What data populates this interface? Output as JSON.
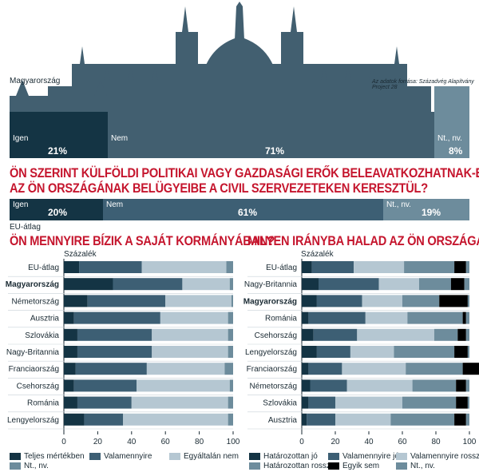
{
  "colors": {
    "dark": "#143444",
    "mid": "#3d5f74",
    "light": "#b5c7d2",
    "gray": "#6d8c9c",
    "black": "#000000",
    "red": "#c5162e",
    "parliament": "#425f70"
  },
  "top": {
    "country": "Magyarország",
    "source": "Az adatok forrása: Századvég Alapítvány Project 28",
    "segments": [
      {
        "label": "Igen",
        "value": "21%",
        "color": "dark"
      },
      {
        "label": "Nem",
        "value": "71%",
        "color": "parliament"
      },
      {
        "label": "Nt., nv.",
        "value": "8%",
        "color": "gray"
      }
    ]
  },
  "question_top": {
    "title_line1": "ÖN SZERINT KÜLFÖLDI POLITIKAI VAGY GAZDASÁGI ERŐK BELEAVATKOZHATNAK-E",
    "title_line2": "AZ ÖN ORSZÁGÁNAK BELÜGYEIBE A CIVIL SZERVEZETEKEN KERESZTÜL?",
    "eu_label": "EU-átlag",
    "segments": [
      {
        "label": "Igen",
        "value": "20%",
        "color": "dark"
      },
      {
        "label": "Nem",
        "value": "61%",
        "color": "mid"
      },
      {
        "label": "Nt., nv.",
        "value": "19%",
        "color": "gray"
      }
    ]
  },
  "chart_data": [
    {
      "type": "bar",
      "title": "ÖN MENNYIRE BÍZIK A SAJÁT KORMÁNYÁBAN?",
      "xlabel": "Százalék",
      "xlim": [
        0,
        100
      ],
      "xticks": [
        "0",
        "20",
        "40",
        "60",
        "80",
        "100"
      ],
      "bold_category": "Magyarország",
      "categories": [
        "EU-átlag",
        "Magyarország",
        "Németország",
        "Ausztria",
        "Szlovákia",
        "Nagy-Britannia",
        "Franciaország",
        "Csehország",
        "Románia",
        "Lengyelország"
      ],
      "series": [
        {
          "name": "Teljes mértékben",
          "color": "dark",
          "values": [
            9,
            29,
            14,
            6,
            8,
            8,
            7,
            6,
            8,
            12
          ]
        },
        {
          "name": "Valamennyire",
          "color": "mid",
          "values": [
            37,
            41,
            46,
            51,
            44,
            44,
            42,
            37,
            32,
            23
          ]
        },
        {
          "name": "Egyáltalán nem",
          "color": "light",
          "values": [
            50,
            28,
            39,
            40,
            45,
            45,
            46,
            55,
            57,
            62
          ]
        },
        {
          "name": "Nt., nv.",
          "color": "gray",
          "values": [
            4,
            2,
            1,
            3,
            3,
            3,
            5,
            2,
            3,
            3
          ]
        }
      ]
    },
    {
      "type": "bar",
      "title": "MILYEN IRÁNYBA HALAD AZ ÖN ORSZÁGA?",
      "xlabel": "Százalék",
      "xlim": [
        0,
        100
      ],
      "xticks": [
        "0",
        "20",
        "40",
        "60",
        "80",
        "100"
      ],
      "bold_category": "Magyarország",
      "categories": [
        "EU-átlag",
        "Nagy-Britannia",
        "Magyarország",
        "Románia",
        "Csehország",
        "Lengyelország",
        "Franciaország",
        "Németország",
        "Szlovákia",
        "Ausztria"
      ],
      "series": [
        {
          "name": "Határozottan jó",
          "color": "dark",
          "values": [
            6,
            10,
            9,
            4,
            7,
            9,
            4,
            5,
            4,
            3
          ]
        },
        {
          "name": "Valamennyire jó",
          "color": "mid",
          "values": [
            25,
            36,
            27,
            34,
            26,
            20,
            20,
            22,
            16,
            17
          ]
        },
        {
          "name": "Valamennyire rossz",
          "color": "light",
          "values": [
            30,
            24,
            24,
            25,
            46,
            26,
            38,
            39,
            40,
            33
          ]
        },
        {
          "name": "Határozottan rossz",
          "color": "gray",
          "values": [
            30,
            19,
            22,
            33,
            14,
            36,
            34,
            26,
            32,
            38
          ]
        },
        {
          "name": "Egyik sem",
          "color": "black",
          "values": [
            7,
            8,
            17,
            2,
            5,
            8,
            11,
            6,
            7,
            7
          ]
        },
        {
          "name": "Nt., nv.",
          "color": "gray",
          "values": [
            2,
            3,
            1,
            2,
            2,
            1,
            3,
            2,
            1,
            2
          ]
        }
      ]
    }
  ],
  "legends": {
    "left": [
      "Teljes mértékben",
      "Valamennyire",
      "Egyáltalán nem",
      "Nt., nv."
    ],
    "right": [
      "Határozottan jó",
      "Valamennyire jó",
      "Valamennyire rossz",
      "Határozottan rossz",
      "Egyik sem",
      "Nt., nv."
    ]
  }
}
